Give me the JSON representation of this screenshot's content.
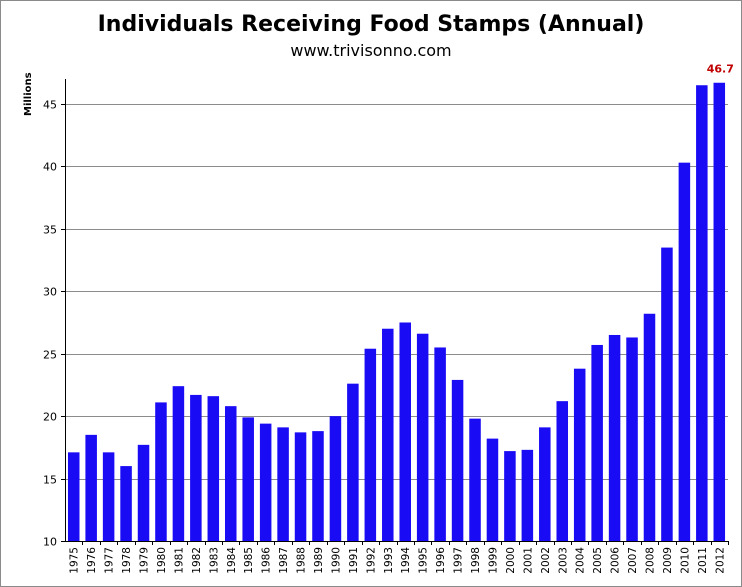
{
  "chart_data": {
    "type": "bar",
    "title": "Individuals Receiving Food Stamps (Annual)",
    "subtitle": "www.trivisonno.com",
    "ylabel": "Millions",
    "xlabel": "",
    "ylim": [
      10,
      47
    ],
    "yticks": [
      10,
      15,
      20,
      25,
      30,
      35,
      40,
      45
    ],
    "grid": true,
    "bar_color": "#1a0bf5",
    "categories": [
      "1975",
      "1976",
      "1977",
      "1978",
      "1979",
      "1980",
      "1981",
      "1982",
      "1983",
      "1984",
      "1985",
      "1986",
      "1987",
      "1988",
      "1989",
      "1990",
      "1991",
      "1992",
      "1993",
      "1994",
      "1995",
      "1996",
      "1997",
      "1998",
      "1999",
      "2000",
      "2001",
      "2002",
      "2003",
      "2004",
      "2005",
      "2006",
      "2007",
      "2008",
      "2009",
      "2010",
      "2011",
      "2012"
    ],
    "values": [
      17.1,
      18.5,
      17.1,
      16.0,
      17.7,
      21.1,
      22.4,
      21.7,
      21.6,
      20.8,
      19.9,
      19.4,
      19.1,
      18.7,
      18.8,
      20.0,
      22.6,
      25.4,
      27.0,
      27.5,
      26.6,
      25.5,
      22.9,
      19.8,
      18.2,
      17.2,
      17.3,
      19.1,
      21.2,
      23.8,
      25.7,
      26.5,
      26.3,
      28.2,
      33.5,
      40.3,
      46.5,
      46.7
    ],
    "annotations": [
      {
        "category": "2012",
        "text": "46.7",
        "color": "#c00000"
      }
    ]
  }
}
